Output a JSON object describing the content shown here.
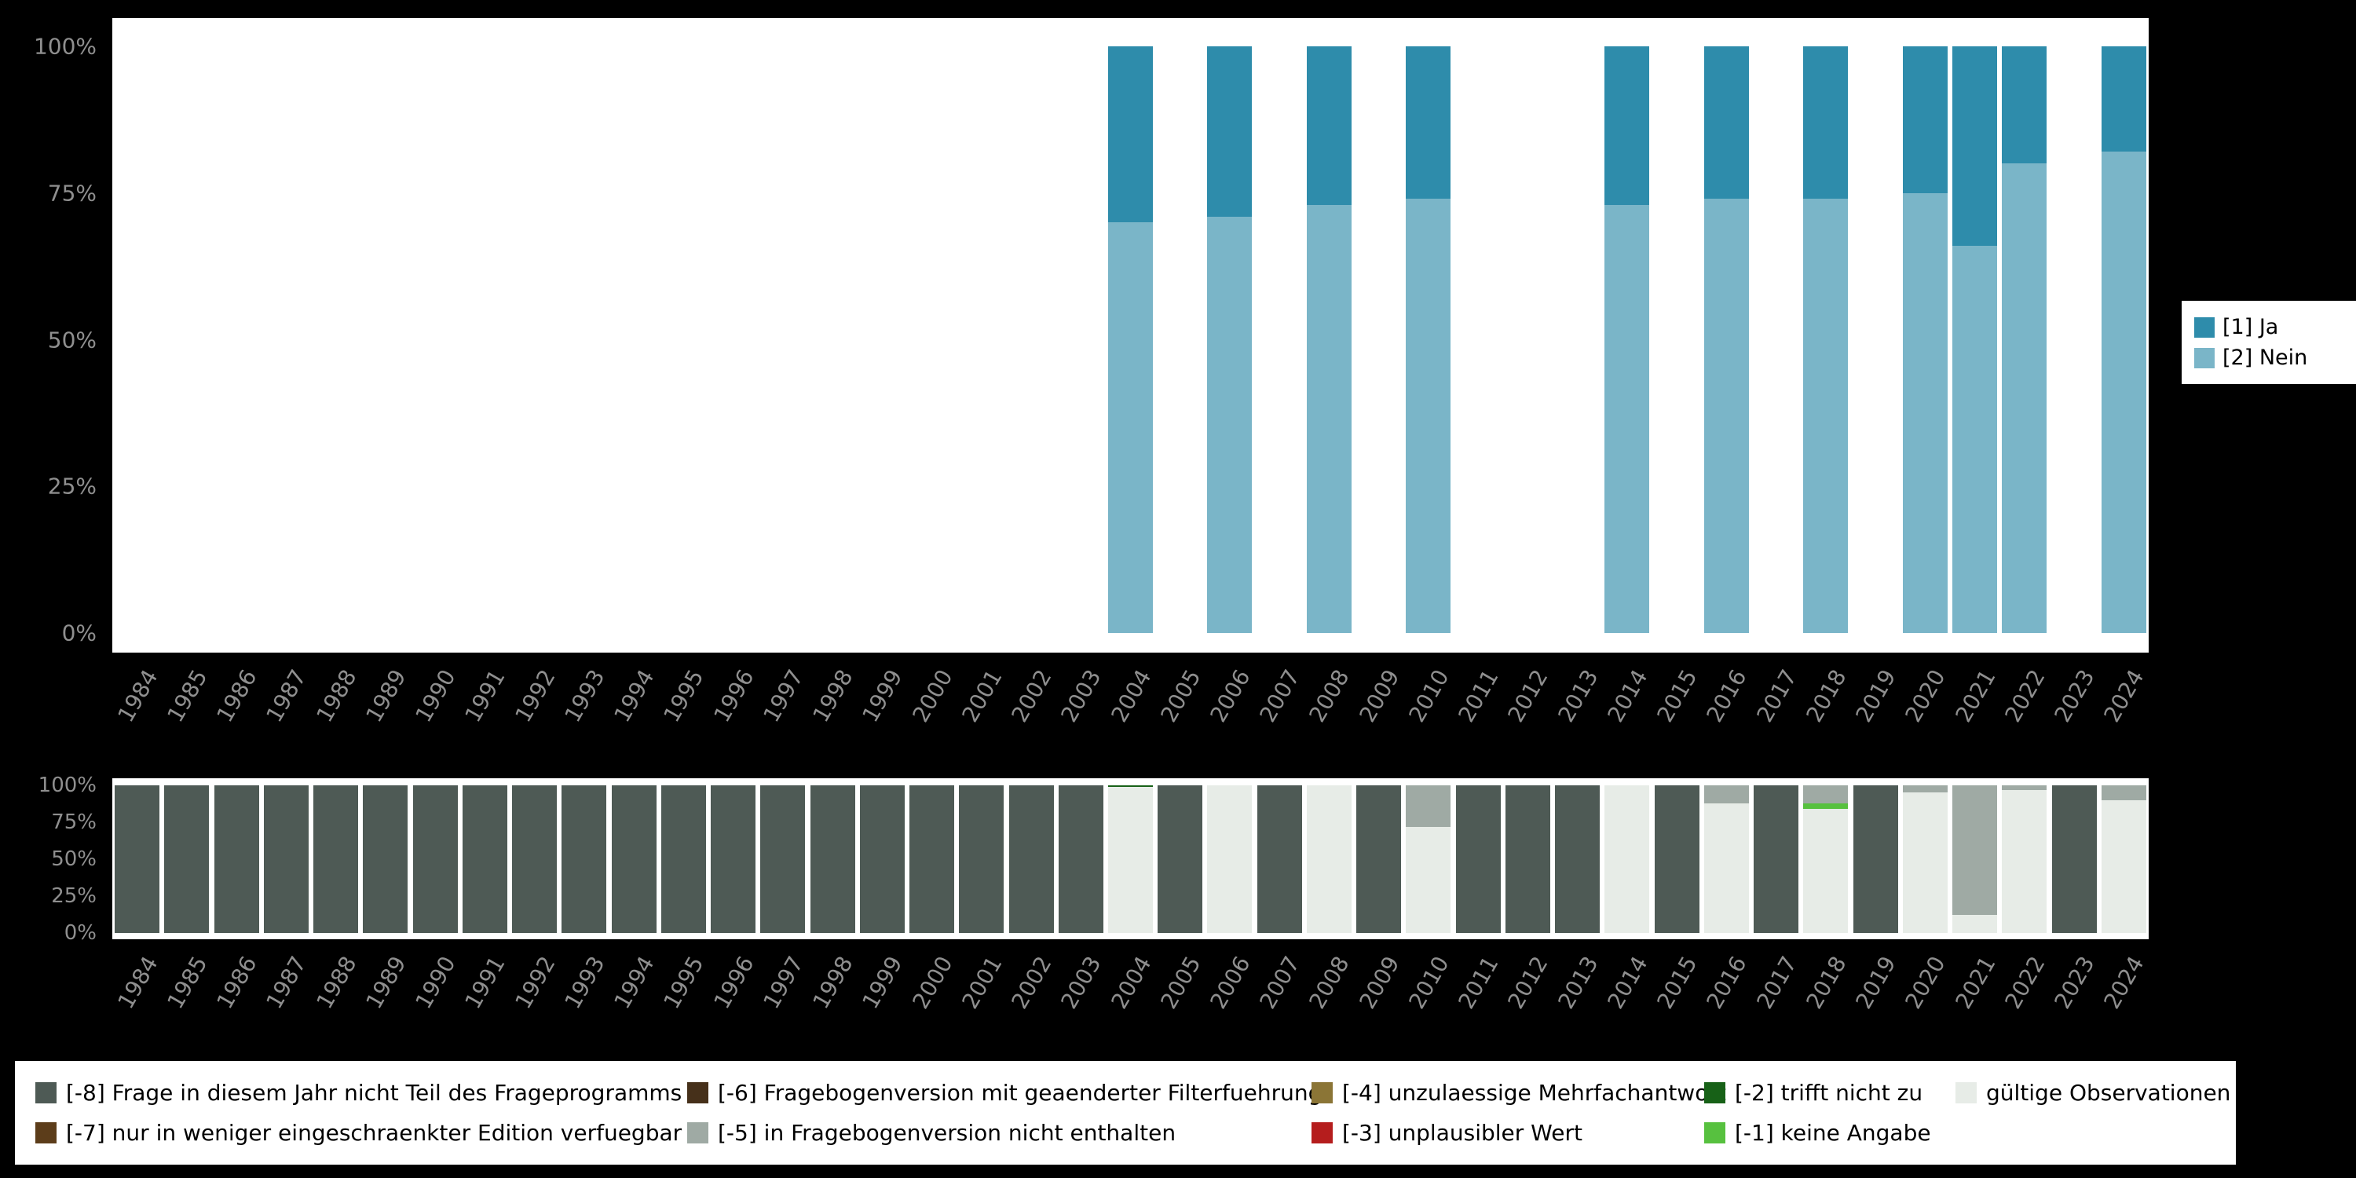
{
  "chart_data": [
    {
      "type": "bar",
      "stacked": true,
      "title": "",
      "xlabel": "",
      "ylabel": "",
      "ylim": [
        0,
        100
      ],
      "yticks": [
        "100%",
        "75%",
        "50%",
        "25%",
        "0%"
      ],
      "legend_position": "right",
      "categories": [
        "1984",
        "1985",
        "1986",
        "1987",
        "1988",
        "1989",
        "1990",
        "1991",
        "1992",
        "1993",
        "1994",
        "1995",
        "1996",
        "1997",
        "1998",
        "1999",
        "2000",
        "2001",
        "2002",
        "2003",
        "2004",
        "2005",
        "2006",
        "2007",
        "2008",
        "2009",
        "2010",
        "2011",
        "2012",
        "2013",
        "2014",
        "2015",
        "2016",
        "2017",
        "2018",
        "2019",
        "2020",
        "2021",
        "2022",
        "2023",
        "2024"
      ],
      "series": [
        {
          "name": "[2] Nein",
          "color": "#7ab5c8",
          "values": {
            "2004": 70,
            "2006": 71,
            "2008": 73,
            "2010": 74,
            "2014": 73,
            "2016": 74,
            "2018": 74,
            "2020": 75,
            "2021": 66,
            "2022": 80,
            "2024": 82
          }
        },
        {
          "name": "[1] Ja",
          "color": "#2e8cab",
          "values": {
            "2004": 30,
            "2006": 29,
            "2008": 27,
            "2010": 26,
            "2014": 27,
            "2016": 26,
            "2018": 26,
            "2020": 25,
            "2021": 34,
            "2022": 20,
            "2024": 18
          }
        }
      ]
    },
    {
      "type": "bar",
      "stacked": true,
      "title": "",
      "xlabel": "",
      "ylabel": "",
      "ylim": [
        0,
        100
      ],
      "yticks": [
        "100%",
        "75%",
        "50%",
        "25%",
        "0%"
      ],
      "legend_position": "bottom",
      "categories": [
        "1984",
        "1985",
        "1986",
        "1987",
        "1988",
        "1989",
        "1990",
        "1991",
        "1992",
        "1993",
        "1994",
        "1995",
        "1996",
        "1997",
        "1998",
        "1999",
        "2000",
        "2001",
        "2002",
        "2003",
        "2004",
        "2005",
        "2006",
        "2007",
        "2008",
        "2009",
        "2010",
        "2011",
        "2012",
        "2013",
        "2014",
        "2015",
        "2016",
        "2017",
        "2018",
        "2019",
        "2020",
        "2021",
        "2022",
        "2023",
        "2024"
      ],
      "series": [
        {
          "name": "gültige Observationen",
          "color": "#e7ece7",
          "values": {
            "2004": 99,
            "2006": 100,
            "2008": 100,
            "2010": 72,
            "2014": 100,
            "2016": 88,
            "2018": 84,
            "2020": 95,
            "2021": 12,
            "2022": 97,
            "2024": 90
          }
        },
        {
          "name": "[-1] keine Angabe",
          "color": "#57c13f",
          "values": {
            "2018": 4
          }
        },
        {
          "name": "[-2] trifft nicht zu",
          "color": "#176117",
          "values": {
            "2004": 1
          }
        },
        {
          "name": "[-3] unplausibler Wert",
          "color": "#b51d1d",
          "values": {}
        },
        {
          "name": "[-4] unzulaessige Mehrfachantwort",
          "color": "#8b7536",
          "values": {}
        },
        {
          "name": "[-5] in Fragebogenversion nicht enthalten",
          "color": "#9faaa4",
          "values": {
            "2010": 28,
            "2016": 12,
            "2018": 12,
            "2020": 5,
            "2021": 88,
            "2022": 3,
            "2024": 10
          }
        },
        {
          "name": "[-6] Fragebogenversion mit geaenderter Filterfuehrung",
          "color": "#46301a",
          "values": {}
        },
        {
          "name": "[-7] nur in weniger eingeschraenkter Edition verfuegbar",
          "color": "#5c3d1a",
          "values": {}
        },
        {
          "name": "[-8] Frage in diesem Jahr nicht Teil des Frageprogramms",
          "color": "#4e5a55",
          "values": {
            "1984": 100,
            "1985": 100,
            "1986": 100,
            "1987": 100,
            "1988": 100,
            "1989": 100,
            "1990": 100,
            "1991": 100,
            "1992": 100,
            "1993": 100,
            "1994": 100,
            "1995": 100,
            "1996": 100,
            "1997": 100,
            "1998": 100,
            "1999": 100,
            "2000": 100,
            "2001": 100,
            "2002": 100,
            "2003": 100,
            "2005": 100,
            "2007": 100,
            "2009": 100,
            "2011": 100,
            "2012": 100,
            "2013": 100,
            "2015": 100,
            "2017": 100,
            "2019": 100,
            "2023": 100
          }
        }
      ]
    }
  ],
  "legend_top": {
    "items": [
      {
        "label": "[1] Ja",
        "color": "#2e8cab"
      },
      {
        "label": "[2] Nein",
        "color": "#7ab5c8"
      }
    ]
  },
  "legend_bottom": {
    "items": [
      {
        "label": "[-8] Frage in diesem Jahr nicht Teil des Frageprogramms",
        "color": "#4e5a55"
      },
      {
        "label": "[-7] nur in weniger eingeschraenkter Edition verfuegbar",
        "color": "#5c3d1a"
      },
      {
        "label": "[-6] Fragebogenversion mit geaenderter Filterfuehrung",
        "color": "#46301a"
      },
      {
        "label": "[-5] in Fragebogenversion nicht enthalten",
        "color": "#9faaa4"
      },
      {
        "label": "[-4] unzulaessige Mehrfachantwort",
        "color": "#8b7536"
      },
      {
        "label": "[-3] unplausibler Wert",
        "color": "#b51d1d"
      },
      {
        "label": "[-2] trifft nicht zu",
        "color": "#176117"
      },
      {
        "label": "[-1] keine Angabe",
        "color": "#57c13f"
      },
      {
        "label": "gültige Observationen",
        "color": "#e7ece7"
      }
    ]
  }
}
